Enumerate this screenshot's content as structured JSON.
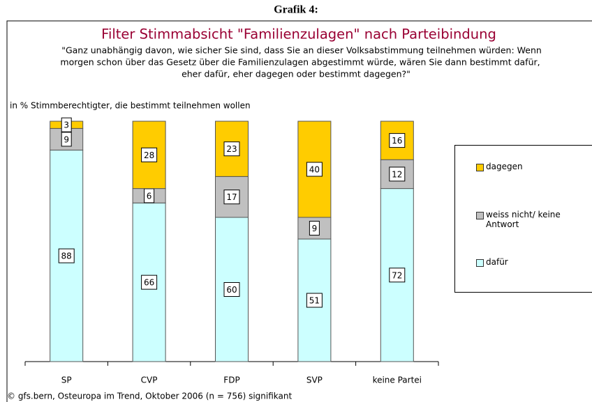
{
  "header": "Grafik 4:",
  "chart_data": {
    "type": "stacked_bar_percent",
    "title": "Filter Stimmabsicht \"Familienzulagen\" nach Parteibindung",
    "subtitle": [
      "\"Ganz unabhängig davon, wie sicher Sie sind, dass Sie an dieser Volksabstimmung teilnehmen würden: Wenn",
      "morgen schon über das Gesetz über die Familienzulagen abgestimmt würde, wären Sie dann bestimmt dafür,",
      "eher dafür, eher dagegen oder bestimmt dagegen?\""
    ],
    "axis_label": "in % Stimmberechtigter, die bestimmt teilnehmen wollen",
    "categories": [
      "SP",
      "CVP",
      "FDP",
      "SVP",
      "keine Partei"
    ],
    "series": [
      {
        "name": "dafür",
        "color": "#ccffff",
        "values": [
          88,
          66,
          60,
          51,
          72
        ]
      },
      {
        "name": "weiss nicht/ keine Antwort",
        "color": "#c0c0c0",
        "values": [
          9,
          6,
          17,
          9,
          12
        ]
      },
      {
        "name": "dagegen",
        "color": "#ffcc00",
        "values": [
          3,
          28,
          23,
          40,
          16
        ]
      }
    ],
    "footnote": "© gfs.bern, Osteuropa im Trend, Oktober 2006 (n = 756) signifikant"
  }
}
